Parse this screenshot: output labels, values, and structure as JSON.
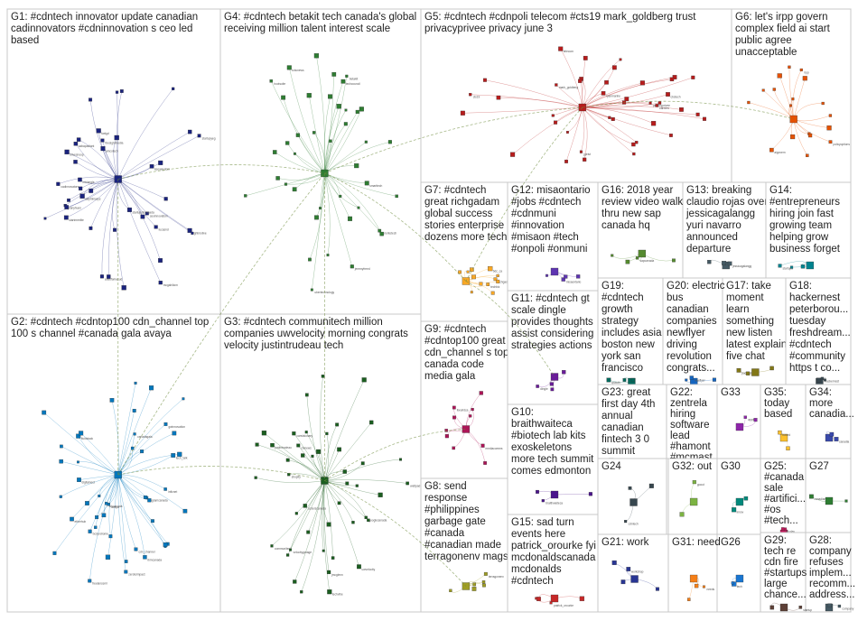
{
  "groups": [
    {
      "id": "G1",
      "label": "G1: #cdntech innovator update canadian cadinnovators #cdninnovation s ceo led based",
      "color": "#1a237e"
    },
    {
      "id": "G2",
      "label": "G2: #cdntech #cdntop100 cdn_channel top 100 s channel #canada gala avaya",
      "color": "#0277bd"
    },
    {
      "id": "G3",
      "label": "G3: #cdntech communitech million companies uwvelocity morning congrats velocity justintrudeau tech",
      "color": "#1b5e20"
    },
    {
      "id": "G4",
      "label": "G4: #cdntech betakit tech canada's global receiving million talent interest scale",
      "color": "#2e7d32"
    },
    {
      "id": "G5",
      "label": "G5: #cdntech #cdnpoli telecom #cts19 mark_goldberg trust privacyprivee privacy june 3",
      "color": "#b71c1c"
    },
    {
      "id": "G6",
      "label": "G6: let's irpp govern complex field ai start public agree unacceptable",
      "color": "#e65100"
    },
    {
      "id": "G7",
      "label": "G7: #cdntech great richgadam global success stories enterprise dozens more tech",
      "color": "#f9a825"
    },
    {
      "id": "G8",
      "label": "G8: send response #philippines garbage gate #canada #canadian made terragonenv mags",
      "color": "#9e9d24"
    },
    {
      "id": "G9",
      "label": "G9: #cdntech #cdntop100 great cdn_channel s top canada code media gala",
      "color": "#ad1457"
    },
    {
      "id": "G10",
      "label": "G10: braithwaiteca #biotech lab kits exoskeletons more tech summit comes edmonton",
      "color": "#4a148c"
    },
    {
      "id": "G11",
      "label": "G11: #cdntech gt scale dingle provides thoughts assist considering strategies actions",
      "color": "#6a1b9a"
    },
    {
      "id": "G12",
      "label": "G12: misaontario #jobs #cdntech #cdnmuni #innovation #misaon #tech #onpoli #onmuni",
      "color": "#5e35b1"
    },
    {
      "id": "G13",
      "label": "G13: breaking claudio rojas over jessicagalangg yuri navarro announced departure",
      "color": "#455a64"
    },
    {
      "id": "G14",
      "label": "G14: #entrepreneurs hiring join fast growing team helping grow business forget",
      "color": "#00838f"
    },
    {
      "id": "G15",
      "label": "G15: sad turn events here patrick_orourke fyi mcdonaldscanada mcdonalds #cdntech",
      "color": "#c62828"
    },
    {
      "id": "G16",
      "label": "G16: 2018 year review video walk thru new sap canada hq",
      "color": "#558b2f"
    },
    {
      "id": "G17",
      "label": "G17: take moment learn something new listen latest explain five chat",
      "color": "#827717"
    },
    {
      "id": "G18",
      "label": "G18: hackernest peterborou... tuesday freshdream... #cdntech #community https t co...",
      "color": "#37474f"
    },
    {
      "id": "G19",
      "label": "G19: #cdntech growth strategy includes asia boston new york san francisco",
      "color": "#00695c"
    },
    {
      "id": "G20",
      "label": "G20: electric bus canadian companies newflyer driving revolution congrats...",
      "color": "#1565c0"
    },
    {
      "id": "G21",
      "label": "G21: work",
      "color": "#283593"
    },
    {
      "id": "G22",
      "label": "G22: zentrela hiring software lead #hamont #mcmast...",
      "color": "#6d4c41"
    },
    {
      "id": "G23",
      "label": "G23: great first day 4th annual canadian fintech 3 0 summit",
      "color": "#0097a7"
    },
    {
      "id": "G24",
      "label": "G24",
      "color": "#37474f"
    },
    {
      "id": "G25",
      "label": "G25: #canada sale #artifici... #os #tech...",
      "color": "#c2185b"
    },
    {
      "id": "G26",
      "label": "G26",
      "color": "#1976d2"
    },
    {
      "id": "G27",
      "label": "G27",
      "color": "#2e7d32"
    },
    {
      "id": "G28",
      "label": "G28: company refuses implem... recomm... address...",
      "color": "#455a64"
    },
    {
      "id": "G29",
      "label": "G29: tech re cdn fire #startups large chance...",
      "color": "#5d4037"
    },
    {
      "id": "G30",
      "label": "G30",
      "color": "#00897b"
    },
    {
      "id": "G31",
      "label": "G31: need",
      "color": "#f57f17"
    },
    {
      "id": "G32",
      "label": "G32: out",
      "color": "#7cb342"
    },
    {
      "id": "G33",
      "label": "G33",
      "color": "#8e24aa"
    },
    {
      "id": "G34",
      "label": "G34: more canadia...",
      "color": "#3949ab"
    },
    {
      "id": "G35",
      "label": "G35: today based",
      "color": "#fbc02d"
    }
  ],
  "node_labels": {
    "G1": [
      "cadinnovators",
      "ceoinnovation",
      "jeanyhuen",
      "rightmotive",
      "sabapadiant",
      "adeefamasud",
      "amcotech",
      "mtriangle",
      "thesightmedia",
      "drivesnoop",
      "startupsincanada",
      "startupyeg",
      "lucasnd",
      "keewaydom",
      "startmeelite",
      "fwdgd",
      "mcgahiliom",
      "aslymbiosys"
    ],
    "G2": [
      "cdn_channel",
      "avaya",
      "tech_talk",
      "inficnet",
      "ibmcanada",
      "zerotoimpact",
      "freelanceml",
      "fluidstack",
      "canadagala",
      "bcsyndrome",
      "gwinnovation",
      "ingramcanada",
      "digitalnect",
      "etherhub",
      "tchcanada"
    ],
    "G3": [
      "communitech",
      "uwvelocity",
      "justintrudeau",
      "velocitygarage",
      "googlecanada",
      "coderscanada",
      "shopify",
      "wattpad",
      "ctvnews",
      "techvibe",
      "jmcglenn",
      "canvisionary"
    ],
    "G4": [
      "betakit",
      "techcouncil",
      "torontotech",
      "ubertechnology",
      "hootsuite",
      "tcbcnews",
      "jeremyfreed",
      "smarttech"
    ],
    "G5": [
      "mark_goldberg",
      "privacyprivee",
      "telecom",
      "cts19",
      "jgeist",
      "carriers",
      "cbctech",
      "ryanmarine"
    ],
    "G6": [
      "irpp",
      "policyoptions",
      "aigovern"
    ],
    "G7": [
      "richgadam",
      "bdc_ca",
      "techbiz"
    ],
    "G8": [
      "terragonenv"
    ],
    "G9": [
      "mediacomms",
      "itworldca"
    ],
    "G10": [
      "braithwaiteca"
    ],
    "G11": [
      "dingle"
    ],
    "G12": [
      "misaontario"
    ],
    "G13": [
      "jessicagalangg"
    ],
    "G14": [
      "startups"
    ],
    "G15": [
      "patrick_orourke"
    ],
    "G16": [
      "sapcanada"
    ],
    "G17": [
      "podcast"
    ],
    "G18": [
      "hackernest"
    ],
    "G19": [
      "growth"
    ],
    "G20": [
      "newflyer"
    ],
    "G21": [
      "workshop"
    ],
    "G22": [
      "zentrela"
    ],
    "G23": [
      "fintech"
    ],
    "G24": [
      "cdntech"
    ],
    "G25": [
      "aitoday"
    ],
    "G26": [
      "tech"
    ],
    "G27": [
      "canadian"
    ],
    "G28": [
      "company"
    ],
    "G29": [
      "startup"
    ],
    "G30": [
      "innov"
    ],
    "G31": [
      "needs"
    ],
    "G32": [
      "goout"
    ],
    "G33": [
      "apps"
    ],
    "G34": [
      "canadia"
    ],
    "G35": [
      "based"
    ]
  }
}
